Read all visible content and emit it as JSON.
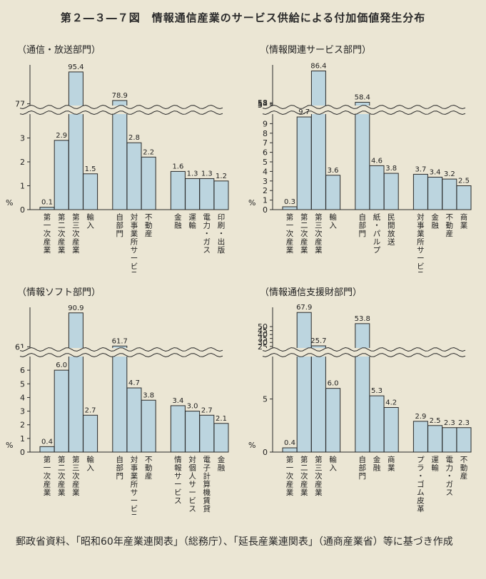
{
  "figure_title": "第２―３―７図　情報通信産業のサービス供給による付加価値発生分布",
  "source_note": "郵政省資料、「昭和60年産業連関表」（総務庁）、「延長産業連関表」（通商産業省）等に基づき作成",
  "chart_data": [
    {
      "type": "bar",
      "title": "（通信・放送部門）",
      "ylabel": "%",
      "categories": [
        "第一次産業",
        "第二次産業",
        "第三次産業",
        "輸入",
        "自部門",
        "対事業所サービス",
        "不動産",
        "金融",
        "運輸",
        "電力・ガス",
        "印刷・出版"
      ],
      "values": [
        0.1,
        2.9,
        95.4,
        1.5,
        78.9,
        2.8,
        2.2,
        1.6,
        1.3,
        1.3,
        1.2
      ],
      "value_labels": [
        "0.1",
        "2.9",
        "95.4",
        "1.5",
        "78.9",
        "2.8",
        "2.2",
        "1.6",
        "1.3",
        "1.3",
        "1.2"
      ],
      "groups": [
        4,
        7
      ],
      "broken_axis": {
        "lower_ticks": [
          "0",
          "1",
          "2",
          "3"
        ],
        "lower_max": 4,
        "upper_ticks": [
          "77"
        ],
        "upper_min": 76,
        "upper_max": 97
      }
    },
    {
      "type": "bar",
      "title": "（情報関連サービス部門）",
      "ylabel": "%",
      "categories": [
        "第一次産業",
        "第二次産業",
        "第三次産業",
        "輸入",
        "自部門",
        "紙・パルプ",
        "民間放送",
        "対事業所サービス",
        "金融",
        "不動産",
        "商業"
      ],
      "values": [
        0.3,
        9.7,
        86.4,
        3.6,
        58.4,
        4.6,
        3.8,
        3.7,
        3.4,
        3.2,
        2.5
      ],
      "value_labels": [
        "0.3",
        "9.7",
        "86.4",
        "3.6",
        "58.4",
        "4.6",
        "3.8",
        "3.7",
        "3.4",
        "3.2",
        "2.5"
      ],
      "groups": [
        4,
        7
      ],
      "broken_axis": {
        "lower_ticks": [
          "0",
          "1",
          "2",
          "3",
          "4",
          "5",
          "6",
          "7",
          "8",
          "9"
        ],
        "lower_max": 10,
        "upper_ticks": [
          "56",
          "57",
          "58"
        ],
        "upper_min": 55.5,
        "upper_max": 88
      }
    },
    {
      "type": "bar",
      "title": "（情報ソフト部門）",
      "ylabel": "%",
      "categories": [
        "第一次産業",
        "第二次産業",
        "第三次産業",
        "輸入",
        "自部門",
        "対事業所サービス",
        "不動産",
        "情報サービス",
        "対個人サービス",
        "電子計算機賃貸",
        "金融"
      ],
      "values": [
        0.4,
        6.0,
        90.9,
        2.7,
        61.7,
        4.7,
        3.8,
        3.4,
        3.0,
        2.7,
        2.1
      ],
      "value_labels": [
        "0.4",
        "6.0",
        "90.9",
        "2.7",
        "61.7",
        "4.7",
        "3.8",
        "3.4",
        "3.0",
        "2.7",
        "2.1"
      ],
      "groups": [
        4,
        7
      ],
      "broken_axis": {
        "lower_ticks": [
          "0",
          "1",
          "2",
          "3",
          "4",
          "5",
          "6"
        ],
        "lower_max": 7,
        "upper_ticks": [
          "61"
        ],
        "upper_min": 60,
        "upper_max": 92
      }
    },
    {
      "type": "bar",
      "title": "（情報通信支援財部門）",
      "ylabel": "%",
      "categories": [
        "第一次産業",
        "第二次産業",
        "第三次産業",
        "輸入",
        "自部門",
        "金融",
        "商業",
        "プラ・ゴム皮革",
        "運輸",
        "電力・ガス",
        "不動産"
      ],
      "values": [
        0.4,
        67.9,
        25.7,
        6.0,
        53.8,
        5.3,
        4.2,
        2.9,
        2.5,
        2.3,
        2.3
      ],
      "value_labels": [
        "0.4",
        "67.9",
        "25.7",
        "6.0",
        "53.8",
        "5.3",
        "4.2",
        "2.9",
        "2.5",
        "2.3",
        "2.3"
      ],
      "groups": [
        4,
        7
      ],
      "broken_axis": {
        "lower_ticks": [
          "0",
          "5"
        ],
        "lower_max": 9,
        "upper_ticks": [
          "25",
          "30",
          "35",
          "40",
          "45",
          "50"
        ],
        "upper_min": 23,
        "upper_max": 69
      }
    }
  ]
}
